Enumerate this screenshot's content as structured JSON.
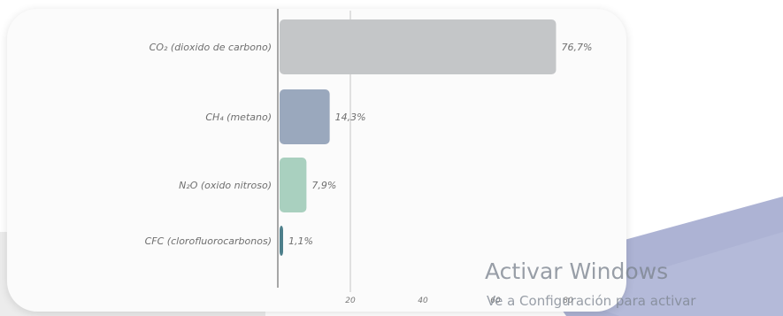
{
  "colors": {
    "co2": "#c4c6c8",
    "ch4": "#9aa8bd",
    "n2o": "#a9d0bf",
    "cfc": "#4d7f8b",
    "label_text": "#6f6f6f",
    "swoosh": "#9fa6cc"
  },
  "chart_data": {
    "type": "bar",
    "orientation": "horizontal",
    "categories": [
      "CO₂ (dioxido de carbono)",
      "CH₄ (metano)",
      "N₂O (oxido nitroso)",
      "CFC (clorofluorocarbonos)"
    ],
    "values": [
      76.7,
      14.3,
      7.9,
      1.1
    ],
    "value_labels": [
      "76,7%",
      "14,3%",
      "7,9%",
      "1,1%"
    ],
    "x_ticks": [
      20,
      40,
      60,
      80
    ],
    "x_tick_labels": [
      "20",
      "40",
      "60",
      "80"
    ],
    "xlim": [
      0,
      85
    ],
    "grid": "vertical line at 20",
    "legend": "none"
  },
  "watermark": {
    "title": "Activar Windows",
    "subtitle": "Ve a Configuración para activar"
  }
}
